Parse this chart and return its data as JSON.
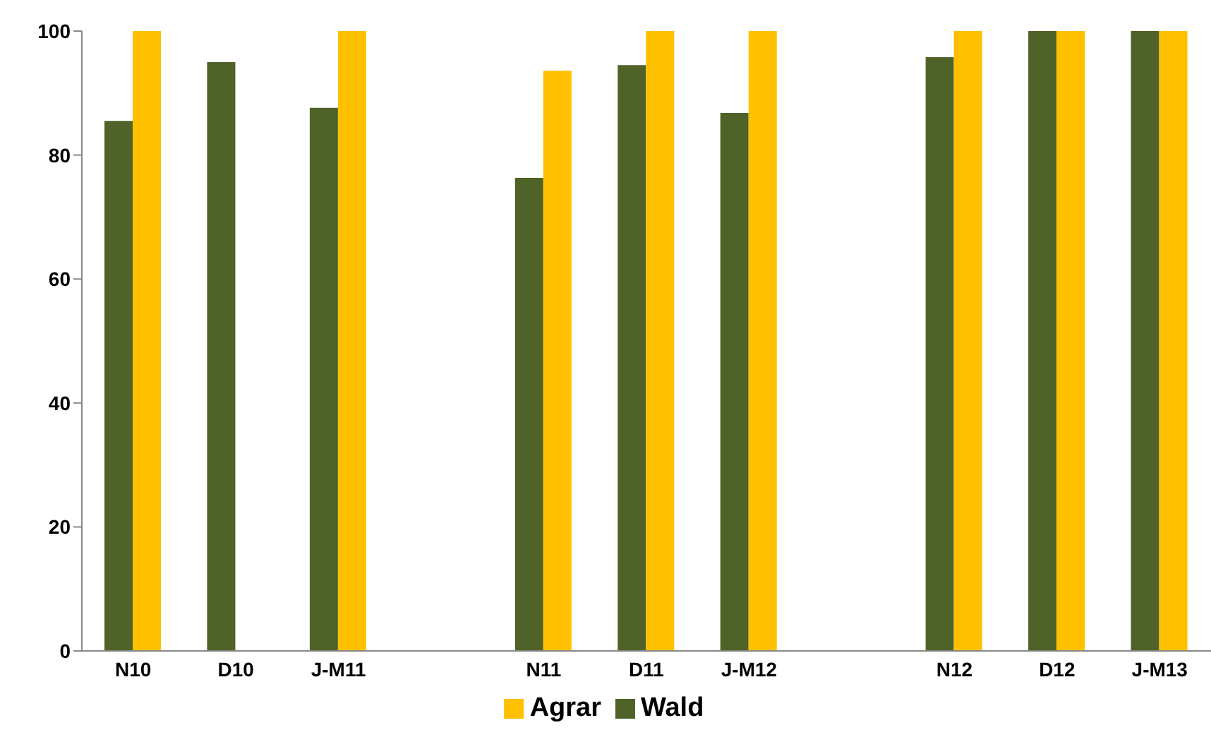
{
  "chart_data": {
    "type": "bar",
    "categories": [
      "N10",
      "D10",
      "J-M11",
      null,
      "N11",
      "D11",
      "J-M12",
      null,
      "N12",
      "D12",
      "J-M13"
    ],
    "series": [
      {
        "name": "Wald",
        "color": "#4f6228",
        "values": [
          85.5,
          95,
          87.6,
          null,
          76.3,
          94.5,
          86.8,
          null,
          95.8,
          100,
          100
        ]
      },
      {
        "name": "Agrar",
        "color": "#ffc000",
        "values": [
          100,
          null,
          100,
          null,
          93.6,
          100,
          100,
          null,
          100,
          100,
          100
        ]
      }
    ],
    "ylim": [
      0,
      100
    ],
    "yticks": [
      0,
      20,
      40,
      60,
      80,
      100
    ],
    "grid": false,
    "legend": "bottom"
  }
}
